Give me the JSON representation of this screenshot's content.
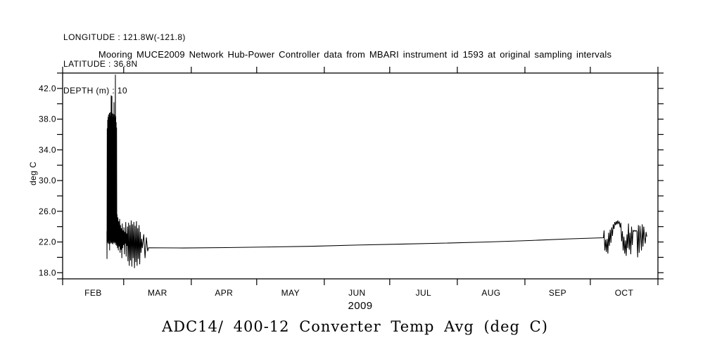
{
  "page": {
    "background": "#ffffff",
    "foreground": "#000000"
  },
  "header": {
    "longitude": "LONGITUDE : 121.8W(-121.8)",
    "latitude": "LATITUDE : 36.8N",
    "depth": "DEPTH (m) : 10"
  },
  "chart_data": {
    "type": "line",
    "title": "Mooring MUCE2009 Network Hub-Power Controller data from MBARI instrument id 1593 at original sampling intervals",
    "footer_title": "ADC14/ 400-12 Converter Temp Avg (deg C)",
    "line_color": "#000000",
    "background": "#ffffff",
    "grid": false,
    "legend": "none",
    "x_axis": {
      "year_label": "2009",
      "unit": "days since 2009-02-01",
      "range_days": [
        0,
        273
      ],
      "month_boundaries_days": [
        0,
        28,
        59,
        89,
        120,
        150,
        181,
        212,
        242,
        273
      ],
      "month_labels": [
        "FEB",
        "MAR",
        "APR",
        "MAY",
        "JUN",
        "JUL",
        "AUG",
        "SEP",
        "OCT"
      ]
    },
    "y_axis": {
      "title": "deg C",
      "range": [
        17.2,
        44.0
      ],
      "minor_ticks": [
        18,
        20,
        22,
        24,
        26,
        28,
        30,
        32,
        34,
        36,
        38,
        40,
        42,
        44
      ],
      "labeled_ticks": [
        "18.0",
        "22.0",
        "26.0",
        "30.0",
        "34.0",
        "38.0",
        "42.0"
      ]
    },
    "series": [
      {
        "name": "ADC14/ 400-12 Converter Temp Avg (deg C)",
        "color": "#000000",
        "points": [
          [
            20.3,
            23.4
          ],
          [
            20.35,
            19.8
          ],
          [
            20.45,
            36.8
          ],
          [
            20.55,
            21.9
          ],
          [
            20.65,
            37.9
          ],
          [
            20.75,
            22.1
          ],
          [
            20.85,
            38.3
          ],
          [
            20.95,
            21.8
          ],
          [
            21.05,
            38.6
          ],
          [
            21.15,
            22.0
          ],
          [
            21.25,
            38.2
          ],
          [
            21.35,
            21.7
          ],
          [
            21.45,
            38.8
          ],
          [
            21.55,
            20.9
          ],
          [
            21.65,
            38.5
          ],
          [
            21.75,
            22.2
          ],
          [
            21.85,
            38.9
          ],
          [
            21.95,
            21.8
          ],
          [
            22.05,
            38.4
          ],
          [
            22.15,
            22.0
          ],
          [
            22.25,
            41.1
          ],
          [
            22.35,
            21.9
          ],
          [
            22.45,
            38.6
          ],
          [
            22.55,
            22.1
          ],
          [
            22.6,
            41.0
          ],
          [
            22.65,
            21.8
          ],
          [
            22.75,
            38.8
          ],
          [
            22.85,
            22.0
          ],
          [
            22.95,
            38.3
          ],
          [
            23.05,
            21.7
          ],
          [
            23.15,
            38.7
          ],
          [
            23.25,
            22.1
          ],
          [
            23.35,
            38.5
          ],
          [
            23.45,
            21.9
          ],
          [
            23.55,
            40.2
          ],
          [
            23.65,
            22.0
          ],
          [
            23.75,
            38.6
          ],
          [
            23.85,
            21.8
          ],
          [
            23.95,
            38.2
          ],
          [
            24.05,
            22.0
          ],
          [
            24.15,
            38.8
          ],
          [
            24.2,
            43.8
          ],
          [
            24.25,
            21.9
          ],
          [
            24.35,
            38.4
          ],
          [
            24.45,
            21.6
          ],
          [
            24.55,
            37.6
          ],
          [
            24.65,
            21.8
          ],
          [
            24.75,
            36.9
          ],
          [
            24.85,
            21.5
          ],
          [
            24.95,
            25.6
          ],
          [
            25.15,
            21.2
          ],
          [
            25.35,
            25.2
          ],
          [
            25.55,
            20.9
          ],
          [
            25.75,
            24.7
          ],
          [
            25.95,
            21.4
          ],
          [
            26.15,
            25.0
          ],
          [
            26.35,
            20.6
          ],
          [
            26.55,
            24.2
          ],
          [
            26.75,
            21.0
          ],
          [
            26.95,
            23.8
          ],
          [
            27.15,
            19.9
          ],
          [
            27.35,
            24.4
          ],
          [
            27.55,
            21.2
          ],
          [
            27.75,
            23.5
          ],
          [
            27.95,
            21.6
          ],
          [
            28.15,
            23.9
          ],
          [
            28.35,
            20.4
          ],
          [
            28.55,
            23.3
          ],
          [
            28.75,
            21.8
          ],
          [
            28.95,
            24.6
          ],
          [
            29.15,
            20.1
          ],
          [
            29.35,
            23.1
          ],
          [
            29.55,
            21.5
          ],
          [
            29.75,
            24.0
          ],
          [
            29.95,
            19.5
          ],
          [
            30.25,
            24.5
          ],
          [
            30.55,
            18.9
          ],
          [
            30.85,
            24.2
          ],
          [
            31.15,
            19.6
          ],
          [
            31.45,
            24.8
          ],
          [
            31.75,
            18.8
          ],
          [
            32.05,
            24.3
          ],
          [
            32.35,
            19.9
          ],
          [
            32.65,
            24.6
          ],
          [
            32.95,
            18.6
          ],
          [
            33.25,
            24.1
          ],
          [
            33.55,
            19.4
          ],
          [
            33.85,
            24.7
          ],
          [
            34.15,
            18.9
          ],
          [
            34.45,
            23.8
          ],
          [
            34.75,
            19.8
          ],
          [
            35.05,
            24.2
          ],
          [
            35.35,
            19.1
          ],
          [
            35.65,
            23.3
          ],
          [
            35.95,
            20.6
          ],
          [
            36.25,
            22.4
          ],
          [
            36.55,
            21.2
          ],
          [
            37.2,
            23.0
          ],
          [
            37.8,
            19.9
          ],
          [
            38.4,
            22.6
          ],
          [
            39.0,
            20.8
          ],
          [
            39.4,
            21.25
          ],
          [
            55,
            21.22
          ],
          [
            75,
            21.27
          ],
          [
            95,
            21.35
          ],
          [
            115,
            21.45
          ],
          [
            135,
            21.6
          ],
          [
            155,
            21.72
          ],
          [
            175,
            21.85
          ],
          [
            195,
            22.0
          ],
          [
            215,
            22.2
          ],
          [
            232,
            22.4
          ],
          [
            248,
            22.55
          ],
          [
            248.3,
            23.5
          ],
          [
            248.65,
            20.9
          ],
          [
            249.0,
            22.3
          ],
          [
            249.35,
            20.7
          ],
          [
            249.7,
            22.4
          ],
          [
            250.05,
            20.5
          ],
          [
            250.4,
            23.2
          ],
          [
            250.75,
            21.5
          ],
          [
            251.1,
            23.6
          ],
          [
            251.45,
            21.9
          ],
          [
            251.8,
            23.9
          ],
          [
            252.15,
            22.8
          ],
          [
            252.5,
            24.3
          ],
          [
            252.85,
            23.7
          ],
          [
            253.2,
            24.6
          ],
          [
            253.55,
            24.2
          ],
          [
            253.9,
            24.7
          ],
          [
            254.25,
            24.3
          ],
          [
            254.6,
            24.8
          ],
          [
            254.95,
            24.4
          ],
          [
            255.3,
            24.6
          ],
          [
            255.65,
            23.9
          ],
          [
            256.0,
            24.5
          ],
          [
            256.35,
            22.1
          ],
          [
            256.7,
            23.4
          ],
          [
            257.05,
            20.9
          ],
          [
            257.4,
            22.7
          ],
          [
            257.75,
            20.5
          ],
          [
            258.1,
            22.2
          ],
          [
            258.45,
            20.2
          ],
          [
            258.8,
            23.0
          ],
          [
            259.15,
            21.2
          ],
          [
            259.5,
            24.4
          ],
          [
            259.85,
            21.0
          ],
          [
            260.2,
            23.2
          ],
          [
            260.55,
            20.4
          ],
          [
            260.9,
            24.0
          ],
          [
            261.25,
            21.6
          ],
          [
            261.6,
            23.5
          ],
          [
            261.95,
            23.4
          ],
          [
            262.3,
            23.5
          ],
          [
            262.65,
            23.4
          ],
          [
            263.0,
            23.5
          ],
          [
            263.35,
            23.4
          ],
          [
            263.7,
            20.0
          ],
          [
            264.05,
            24.2
          ],
          [
            264.4,
            20.6
          ],
          [
            264.75,
            24.1
          ],
          [
            265.1,
            22.7
          ],
          [
            265.45,
            20.9
          ],
          [
            265.8,
            24.3
          ],
          [
            266.15,
            21.4
          ],
          [
            266.5,
            24.0
          ],
          [
            266.85,
            22.6
          ],
          [
            267.2,
            21.8
          ],
          [
            267.55,
            23.3
          ],
          [
            267.9,
            22.7
          ]
        ]
      }
    ]
  }
}
